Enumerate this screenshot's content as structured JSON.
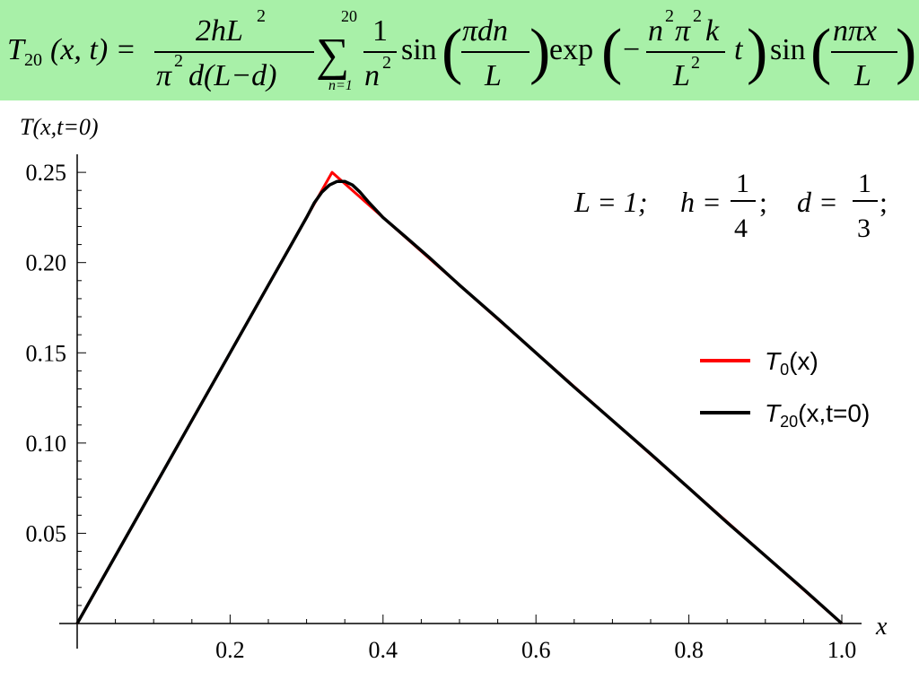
{
  "formula": {
    "lhs_T": "T",
    "lhs_sub": "20",
    "lhs_args": "(x, t) =",
    "coef_num": "2hL",
    "coef_num_exp": "2",
    "coef_den": "π",
    "coef_den_exp": "2",
    "coef_den_rest": "d(L−d)",
    "sum_symbol": "∑",
    "sum_upper": "20",
    "sum_lower": "n=1",
    "frac1_num": "1",
    "frac1_den": "n",
    "frac1_den_exp": "2",
    "sin1": "sin",
    "frac2_num": "πdn",
    "frac2_den": "L",
    "exp_fn": "exp",
    "minus": "−",
    "frac3_num_a": "n",
    "frac3_num_exp1": "2",
    "frac3_num_b": "π",
    "frac3_num_exp2": "2",
    "frac3_num_c": "k",
    "frac3_den": "L",
    "frac3_den_exp": "2",
    "exp_t": "t",
    "sin2": "sin",
    "frac4_num": "nπx",
    "frac4_den": "L",
    "open_paren": "(",
    "close_paren": ")"
  },
  "params": {
    "L_eq": "L = 1;",
    "h_eq": "h =",
    "h_num": "1",
    "h_den": "4",
    "h_semicolon": ";",
    "d_eq": "d =",
    "d_num": "1",
    "d_den": "3",
    "d_semicolon": ";"
  },
  "chart_data": {
    "type": "line",
    "ylabel": "T(x,t=0)",
    "xlabel": "x",
    "xlim": [
      0,
      1.0
    ],
    "ylim": [
      0,
      0.26
    ],
    "x_ticks": [
      "0.2",
      "0.4",
      "0.6",
      "0.8",
      "1.0"
    ],
    "x_tick_values": [
      0.2,
      0.4,
      0.6,
      0.8,
      1.0
    ],
    "y_ticks": [
      "0.05",
      "0.10",
      "0.15",
      "0.20",
      "0.25"
    ],
    "y_tick_values": [
      0.05,
      0.1,
      0.15,
      0.2,
      0.25
    ],
    "grid": false,
    "legend_position": "right",
    "series": [
      {
        "name_base": "T",
        "name_sub": "0",
        "name_args": "(x)",
        "color": "#ff0000",
        "x": [
          0,
          0.3333,
          1.0
        ],
        "y": [
          0,
          0.25,
          0
        ]
      },
      {
        "name_base": "T",
        "name_sub": "20",
        "name_args": "(x,t=0)",
        "color": "#000000",
        "x": [
          0,
          0.05,
          0.1,
          0.15,
          0.2,
          0.25,
          0.28,
          0.3,
          0.31,
          0.32,
          0.33,
          0.34,
          0.35,
          0.36,
          0.37,
          0.38,
          0.4,
          0.43,
          0.46,
          0.5,
          0.55,
          0.6,
          0.65,
          0.7,
          0.75,
          0.8,
          0.85,
          0.9,
          0.95,
          1.0
        ],
        "y": [
          0,
          0.0375,
          0.075,
          0.1125,
          0.15,
          0.1875,
          0.21,
          0.225,
          0.233,
          0.239,
          0.243,
          0.245,
          0.245,
          0.243,
          0.239,
          0.234,
          0.225,
          0.214,
          0.203,
          0.1875,
          0.169,
          0.15,
          0.131,
          0.1125,
          0.094,
          0.075,
          0.056,
          0.0375,
          0.019,
          0
        ]
      }
    ]
  }
}
